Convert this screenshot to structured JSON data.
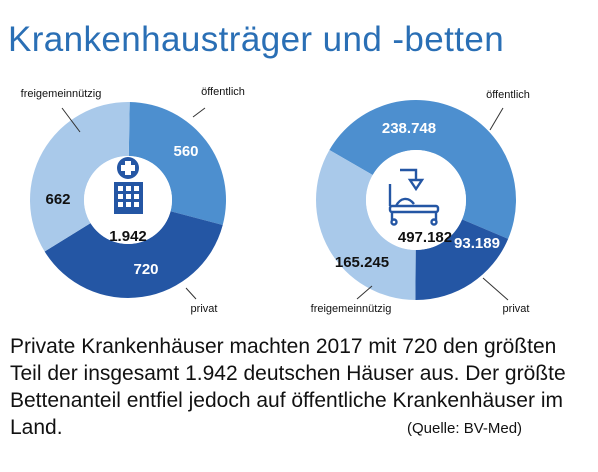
{
  "header": {
    "title": "Krankenhausträger und -betten"
  },
  "colors": {
    "privat": "#2456a4",
    "oeffentlich": "#4d8fcf",
    "freigemeinnuetzig": "#a9c9ea",
    "leader": "#333333",
    "icon": "#2456a4"
  },
  "icons": {
    "left_center": "hospital-cross-building-icon",
    "right_center": "hospital-bed-icon"
  },
  "chart_data": [
    {
      "type": "pie",
      "donut": true,
      "total_label": "1.942",
      "slices": [
        {
          "key": "oeffentlich",
          "name": "öffentlich",
          "value": 560,
          "value_label": "560"
        },
        {
          "key": "privat",
          "name": "privat",
          "value": 720,
          "value_label": "720"
        },
        {
          "key": "freigemeinnuetzig",
          "name": "freigemeinnützig",
          "value": 662,
          "value_label": "662"
        }
      ]
    },
    {
      "type": "pie",
      "donut": true,
      "total_label": "497.182",
      "slices": [
        {
          "key": "oeffentlich",
          "name": "öffentlich",
          "value": 238748,
          "value_label": "238.748"
        },
        {
          "key": "privat",
          "name": "privat",
          "value": 93189,
          "value_label": "93.189"
        },
        {
          "key": "freigemeinnuetzig",
          "name": "freigemeinnützig",
          "value": 165245,
          "value_label": "165.245"
        }
      ]
    }
  ],
  "caption": "Private Krankenhäuser machten 2017 mit 720 den größten Teil der insgesamt 1.942 deutschen Häuser aus. Der größte Bettenanteil entfiel jedoch auf öffent­liche Krankenhäuser im Land.",
  "source": "(Quelle: BV-Med)"
}
